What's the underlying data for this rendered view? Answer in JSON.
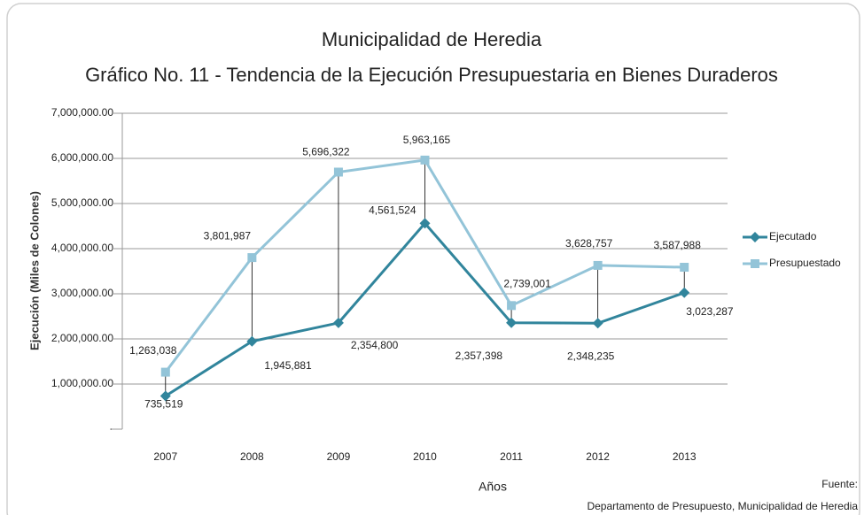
{
  "chart_data": {
    "type": "line",
    "title": "Municipalidad de Heredia",
    "subtitle": "Gráfico No. 11 - Tendencia de la Ejecución Presupuestaria en Bienes Duraderos",
    "x_label": "Años",
    "y_label": "Ejecución (Miles de Colones)",
    "source_title": "Fuente:",
    "source": "Departamento de Presupuesto, Municipalidad de Heredia",
    "categories": [
      "2007",
      "2008",
      "2009",
      "2010",
      "2011",
      "2012",
      "2013"
    ],
    "series": [
      {
        "name": "Ejecutado",
        "color": "#31859c",
        "marker": "diamond",
        "values": [
          735519,
          1945881,
          2354800,
          4561524,
          2357398,
          2348235,
          3023287
        ],
        "value_labels": [
          "735,519",
          "1,945,881",
          "2,354,800",
          "4,561,524",
          "2,357,398",
          "2,348,235",
          "3,023,287"
        ]
      },
      {
        "name": "Presupuestado",
        "color": "#93c4d8",
        "marker": "square",
        "values": [
          1263038,
          3801987,
          5696322,
          5963165,
          2739001,
          3628757,
          3587988
        ],
        "value_labels": [
          "1,263,038",
          "3,801,987",
          "5,696,322",
          "5,963,165",
          "2,739,001",
          "3,628,757",
          "3,587,988"
        ]
      }
    ],
    "ylim": [
      0,
      7000000
    ],
    "yticks": [
      {
        "value": 0,
        "label": "-"
      },
      {
        "value": 1000000,
        "label": "1,000,000.00"
      },
      {
        "value": 2000000,
        "label": "2,000,000.00"
      },
      {
        "value": 3000000,
        "label": "3,000,000.00"
      },
      {
        "value": 4000000,
        "label": "4,000,000.00"
      },
      {
        "value": 5000000,
        "label": "5,000,000.00"
      },
      {
        "value": 6000000,
        "label": "6,000,000.00"
      },
      {
        "value": 7000000,
        "label": "7,000,000.00"
      }
    ],
    "grid": true,
    "legend": "right",
    "drop_lines": true
  }
}
